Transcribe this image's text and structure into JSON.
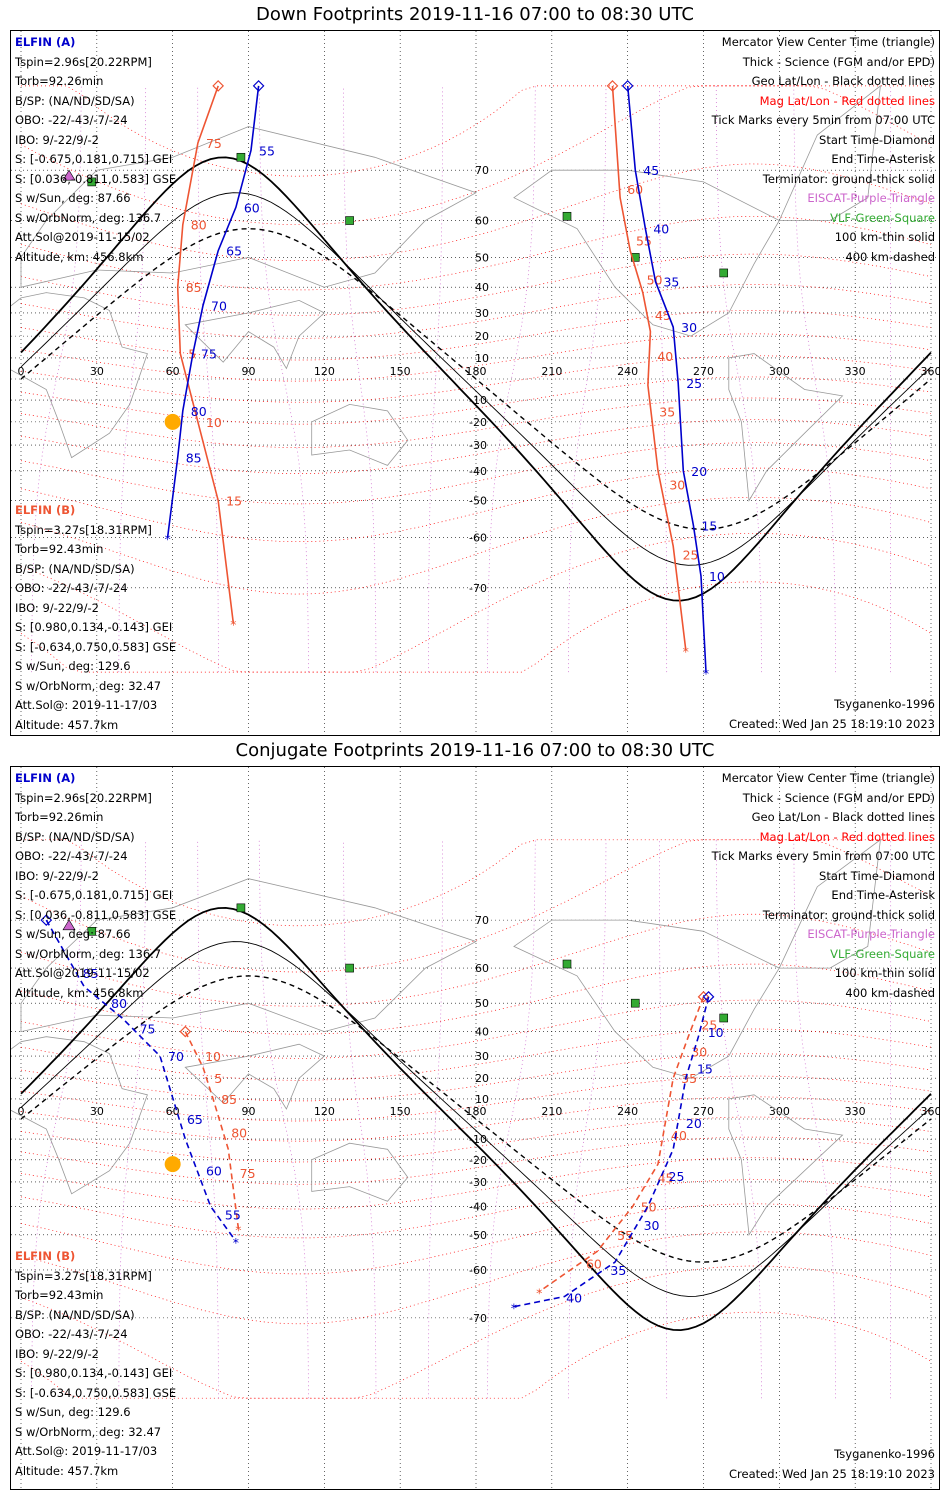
{
  "panels": [
    {
      "title": "Down Footprints 2019-11-16 07:00 to 08:30 UTC",
      "elfin_a": {
        "header": "ELFIN (A)",
        "lines": [
          "Tspin=2.96s[20.22RPM]",
          "Torb=92.26min",
          "B/SP: (NA/ND/SD/SA)",
          "OBO: -22/-43/-7/-24",
          "IBO: 9/-22/9/-2",
          "S: [-0.675,0.181,0.715] GEI",
          "S: [0.036,-0.811,0.583] GSE",
          "S w/Sun, deg: 87.66",
          "S w/OrbNorm, deg: 136.7",
          "Att.Sol@2019-11-15/02",
          "Altitude, km: 456.8km"
        ]
      },
      "elfin_b": {
        "header": "ELFIN (B)",
        "lines": [
          "Tspin=3.27s[18.31RPM]",
          "Torb=92.43min",
          "B/SP: (NA/ND/SD/SA)",
          "OBO: -22/-43/-7/-24",
          "IBO: 9/-22/9/-2",
          "S: [0.980,0.134,-0.143] GEI",
          "S: [-0.634,0.750,0.583] GSE",
          "S w/Sun, deg: 129.6",
          "S w/OrbNorm, deg: 32.47",
          "Att.Sol@: 2019-11-17/03",
          "Altitude: 457.7km"
        ]
      },
      "footer_left": "Tsyganenko-1996",
      "footer_right": "Created: Wed Jan 25 18:19:10 2023"
    },
    {
      "title": "Conjugate Footprints 2019-11-16 07:00 to 08:30 UTC",
      "elfin_a": {
        "header": "ELFIN (A)",
        "lines": [
          "Tspin=2.96s[20.22RPM]",
          "Torb=92.26min",
          "B/SP: (NA/ND/SD/SA)",
          "OBO: -22/-43/-7/-24",
          "IBO: 9/-22/9/-2",
          "S: [-0.675,0.181,0.715] GEI",
          "S: [0.036,-0.811,0.583] GSE",
          "S w/Sun, deg: 87.66",
          "S w/OrbNorm, deg: 136.7",
          "Att.Sol@2019-11-15/02",
          "Altitude, km: 456.8km"
        ]
      },
      "elfin_b": {
        "header": "ELFIN (B)",
        "lines": [
          "Tspin=3.27s[18.31RPM]",
          "Torb=92.43min",
          "B/SP: (NA/ND/SD/SA)",
          "OBO: -22/-43/-7/-24",
          "IBO: 9/-22/9/-2",
          "S: [0.980,0.134,-0.143] GEI",
          "S: [-0.634,0.750,0.583] GSE",
          "S w/Sun, deg: 129.6",
          "S w/OrbNorm, deg: 32.47",
          "Att.Sol@: 2019-11-17/03",
          "Altitude: 457.7km"
        ]
      },
      "footer_left": "Tsyganenko-1996",
      "footer_right": "Created: Wed Jan 25 18:19:10 2023"
    }
  ],
  "legend": [
    {
      "text": "Mercator View Center Time (triangle)",
      "color": "#000000"
    },
    {
      "text": "Thick - Science (FGM and/or EPD)",
      "color": "#000000"
    },
    {
      "text": "Geo Lat/Lon - Black dotted lines",
      "color": "#000000"
    },
    {
      "text": "Mag Lat/Lon - Red dotted lines",
      "color": "#ff0000"
    },
    {
      "text": "Tick Marks every 5min from 07:00 UTC",
      "color": "#000000"
    },
    {
      "text": "Start Time-Diamond",
      "color": "#000000"
    },
    {
      "text": "End Time-Asterisk",
      "color": "#000000"
    },
    {
      "text": "Terminator: ground-thick solid",
      "color": "#000000"
    },
    {
      "text": "EISCAT-Purple-Triangle",
      "color": "#cc66cc"
    },
    {
      "text": "VLF-Green-Square",
      "color": "#33aa33"
    },
    {
      "text": "100 km-thin solid",
      "color": "#000000"
    },
    {
      "text": "400 km-dashed",
      "color": "#000000"
    }
  ],
  "map": {
    "lon_ticks": [
      "0",
      "30",
      "60",
      "90",
      "120",
      "150",
      "180",
      "210",
      "240",
      "270",
      "300",
      "330",
      "360"
    ],
    "lat_ticks": [
      "70",
      "60",
      "50",
      "40",
      "30",
      "20",
      "10",
      "-10",
      "-20",
      "-30",
      "-40",
      "-50",
      "-60",
      "-70"
    ],
    "colors": {
      "elfin_a": "#0000cc",
      "elfin_b": "#ee5533",
      "geo_grid": "#000000",
      "mag_grid": "#ff0000",
      "eiscat": "#cc66cc",
      "vlf": "#33aa33",
      "coast": "#999999",
      "sun": "#ffaa00"
    },
    "vlf_sites": [
      [
        87,
        72
      ],
      [
        130,
        60
      ],
      [
        216,
        61
      ],
      [
        243,
        50
      ],
      [
        278,
        45
      ],
      [
        28,
        68
      ]
    ],
    "eiscat_sites": [
      [
        19,
        69
      ]
    ],
    "down": {
      "elfin_a_track": {
        "lon": [
          94,
          91,
          85,
          78,
          72,
          68,
          64,
          62,
          58
        ],
        "lat": [
          80,
          73,
          63,
          52,
          33,
          12,
          -15,
          -35,
          -60
        ],
        "tick_labels": [
          "55",
          "60",
          "65",
          "70",
          "75",
          "80",
          "85"
        ]
      },
      "elfin_b_track": {
        "lon": [
          78,
          70,
          64,
          62,
          63,
          70,
          78,
          84
        ],
        "lat": [
          80,
          74,
          59,
          40,
          12,
          -20,
          -50,
          -75
        ],
        "tick_labels": [
          "75",
          "80",
          "85",
          "5",
          "10",
          "15"
        ]
      },
      "elfin_a_track2": {
        "lon": [
          240,
          243,
          247,
          251,
          258,
          260,
          262,
          266,
          269,
          271
        ],
        "lat": [
          80,
          70,
          58,
          42,
          24,
          -2,
          -40,
          -57,
          -68,
          -80
        ],
        "tick_labels": [
          "45",
          "40",
          "35",
          "30",
          "25",
          "20",
          "15",
          "10"
        ]
      },
      "elfin_b_track2": {
        "lon": [
          234,
          237,
          241,
          246,
          249,
          248,
          252,
          258,
          263
        ],
        "lat": [
          80,
          65,
          52,
          38,
          22,
          -3,
          -40,
          -62,
          -78
        ],
        "tick_labels": [
          "60",
          "55",
          "50",
          "45",
          "40",
          "35",
          "30",
          "25"
        ]
      }
    },
    "conjugate": {
      "elfin_a_track": {
        "lon": [
          10,
          25,
          40,
          55,
          65,
          75,
          85
        ],
        "lat": [
          70,
          55,
          45,
          30,
          -10,
          -40,
          -52
        ],
        "tick_labels": [
          "85",
          "80",
          "75",
          "70",
          "65",
          "60",
          "55"
        ]
      },
      "elfin_b_track": {
        "lon": [
          65,
          72,
          76,
          82,
          86
        ],
        "lat": [
          40,
          25,
          10,
          -15,
          -48
        ],
        "tick_labels": [
          "10",
          "5",
          "85",
          "80",
          "75"
        ]
      },
      "elfin_a_track2": {
        "lon": [
          272,
          268,
          263,
          258,
          248,
          235,
          215,
          195
        ],
        "lat": [
          52,
          38,
          20,
          -15,
          -40,
          -58,
          -66,
          -68
        ],
        "tick_labels": [
          "10",
          "15",
          "20",
          "25",
          "30",
          "35",
          "40"
        ]
      },
      "elfin_b_track2": {
        "lon": [
          270,
          264,
          258,
          252,
          242,
          228,
          205
        ],
        "lat": [
          52,
          38,
          20,
          -22,
          -40,
          -55,
          -65
        ],
        "tick_labels": [
          "25",
          "30",
          "35",
          "40",
          "45",
          "50",
          "55",
          "60"
        ]
      }
    }
  }
}
